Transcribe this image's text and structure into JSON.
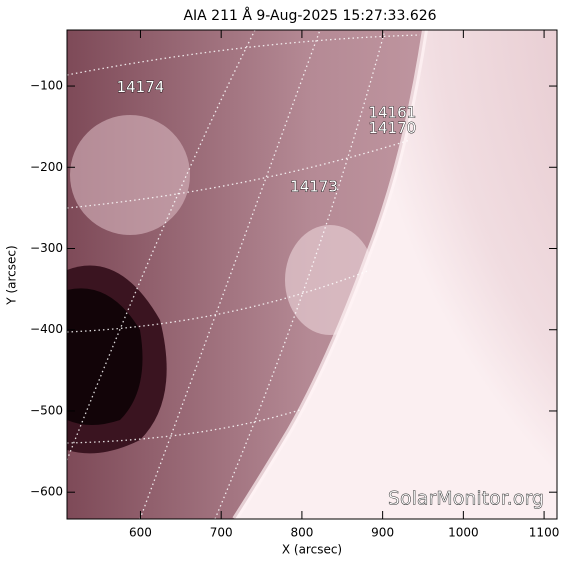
{
  "chart_data": {
    "type": "image",
    "title": "AIA 211 Å  9-Aug-2025 15:27:33.626",
    "x_label": "X (arcsec)",
    "y_label": "Y (arcsec)",
    "xlim": [
      509,
      1116
    ],
    "ylim": [
      -633,
      -31
    ],
    "xticks": [
      600,
      700,
      800,
      900,
      1000,
      1100
    ],
    "yticks": [
      {
        "value": -100,
        "label": "−100"
      },
      {
        "value": -200,
        "label": "−200"
      },
      {
        "value": -300,
        "label": "−300"
      },
      {
        "value": -400,
        "label": "−400"
      },
      {
        "value": -500,
        "label": "−500"
      },
      {
        "value": -600,
        "label": "−600"
      }
    ],
    "annotations": [
      {
        "text": "14174",
        "x": 600,
        "y": -102
      },
      {
        "text": "14161",
        "x": 912,
        "y": -133
      },
      {
        "text": "14170",
        "x": 912,
        "y": -152
      },
      {
        "text": "14173",
        "x": 815,
        "y": -224
      }
    ],
    "watermark": "SolarMonitor.org"
  }
}
